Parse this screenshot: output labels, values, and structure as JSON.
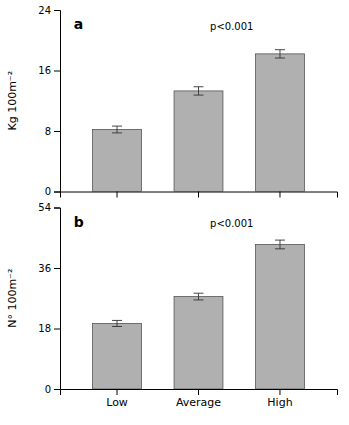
{
  "chart_data": [
    {
      "type": "bar",
      "categories": [
        "Low",
        "Average",
        "High"
      ],
      "values": [
        8.2,
        13.3,
        18.2
      ],
      "errors": [
        0.45,
        0.55,
        0.55
      ],
      "ylabel": "Kg 100m⁻²",
      "ylim": [
        0,
        24
      ],
      "yticks": [
        0,
        8,
        16,
        24
      ],
      "color": "#b0b0b0",
      "annotations": [
        "a",
        "p<0.001"
      ],
      "grid": false,
      "tick_labels": "y"
    },
    {
      "type": "bar",
      "categories": [
        "Low",
        "Average",
        "High"
      ],
      "values": [
        19.5,
        27.5,
        43.0
      ],
      "errors": [
        0.9,
        1.0,
        1.3
      ],
      "ylabel": "N° 100m⁻²",
      "ylim": [
        0,
        54
      ],
      "yticks": [
        0,
        18,
        36,
        54
      ],
      "color": "#b0b0b0",
      "annotations": [
        "b",
        "p<0.001"
      ],
      "grid": false
    }
  ]
}
